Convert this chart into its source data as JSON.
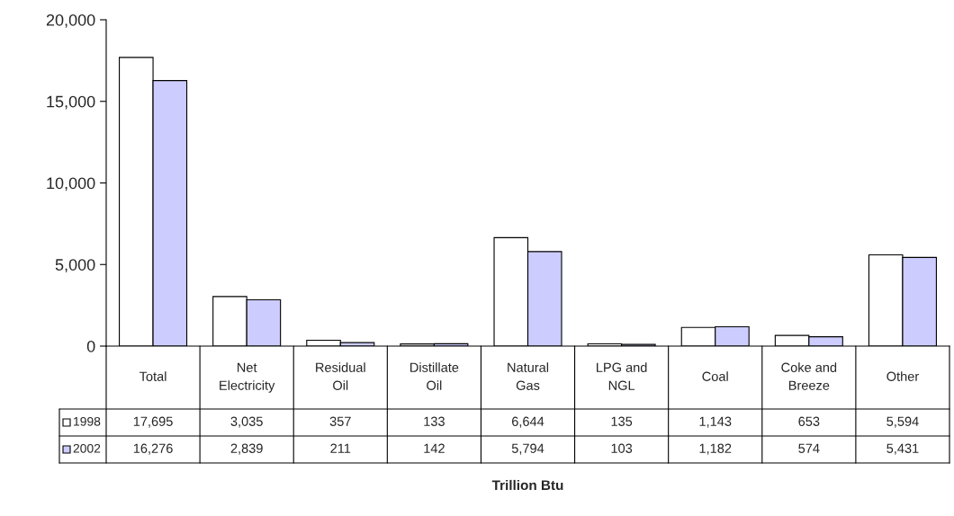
{
  "chart_data": {
    "type": "bar",
    "annotations": [
      "Trillion Btu"
    ],
    "categories": [
      "Total",
      "Net Electricity",
      "Residual Oil",
      "Distillate Oil",
      "Natural Gas",
      "LPG and NGL",
      "Coal",
      "Coke and Breeze",
      "Other"
    ],
    "series": [
      {
        "name": "1998",
        "color": "#ffffff",
        "values": [
          17695,
          3035,
          357,
          133,
          6644,
          135,
          1143,
          653,
          5594
        ],
        "value_labels": [
          "17,695",
          "3,035",
          "357",
          "133",
          "6,644",
          "135",
          "1,143",
          "653",
          "5,594"
        ]
      },
      {
        "name": "2002",
        "color": "#ccccff",
        "values": [
          16276,
          2839,
          211,
          142,
          5794,
          103,
          1182,
          574,
          5431
        ],
        "value_labels": [
          "16,276",
          "2,839",
          "211",
          "142",
          "5,794",
          "103",
          "1,182",
          "574",
          "5,431"
        ]
      }
    ],
    "ylim": [
      0,
      20000
    ],
    "yticks": [
      0,
      {
        "value": 5000,
        "label": "5,000"
      },
      {
        "value": 10000,
        "label": "10,000"
      },
      {
        "value": 15000,
        "label": "15,000"
      },
      {
        "value": 20000,
        "label": "20,000"
      }
    ],
    "grid": false,
    "legend": "bottom left"
  }
}
